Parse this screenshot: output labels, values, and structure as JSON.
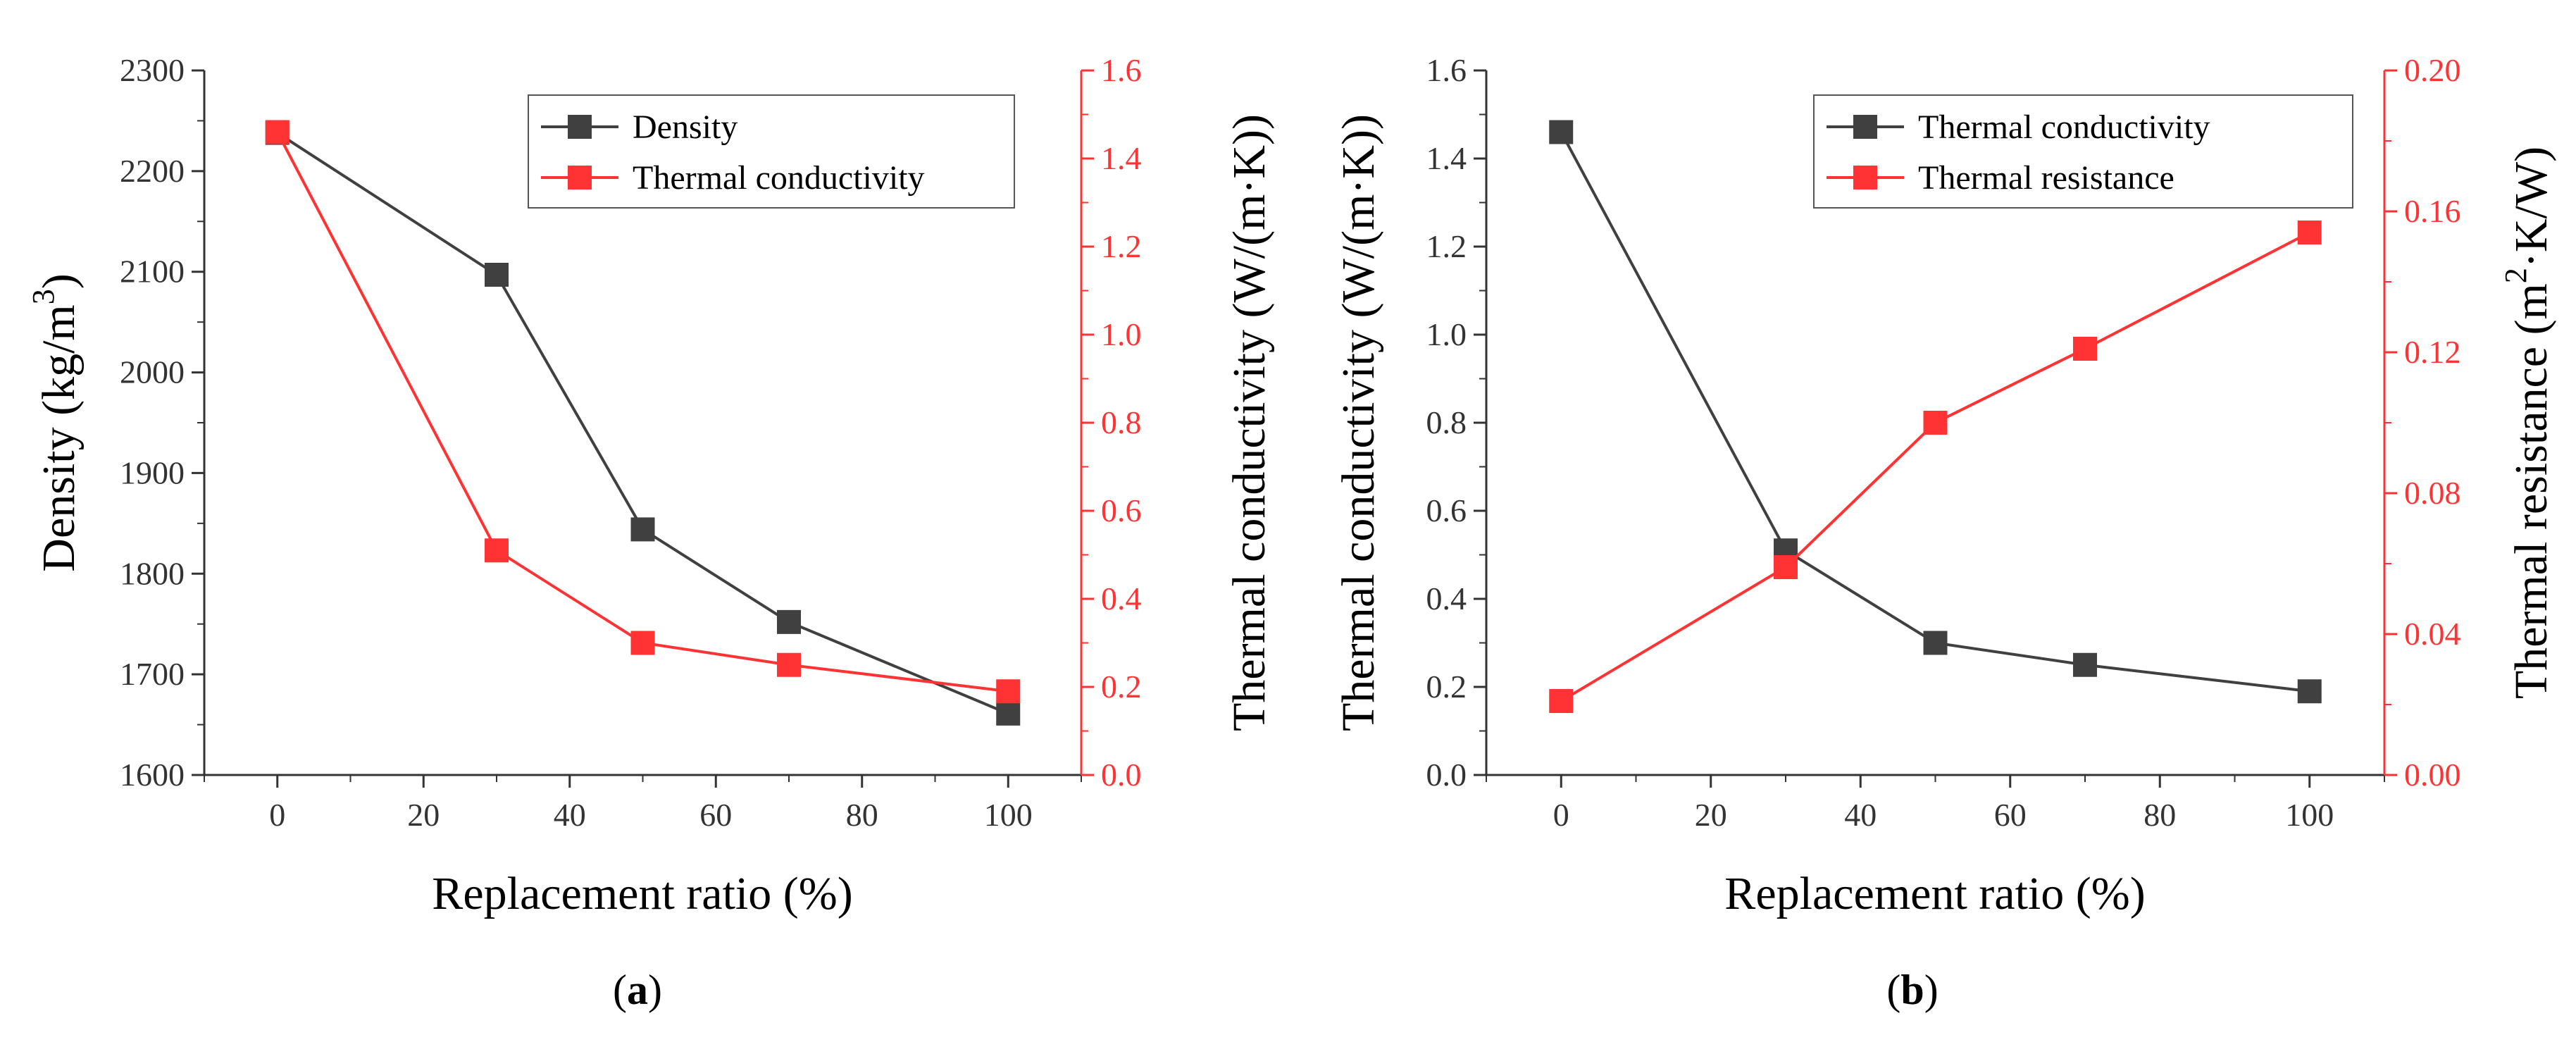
{
  "colors": {
    "left_series": "#404040",
    "right_series": "#ff3333",
    "axis": "#333333",
    "text": "#333333",
    "right_text": "#ff3333"
  },
  "chart_data": [
    {
      "id": "a",
      "type": "line",
      "caption": "(a)",
      "x": [
        0,
        30,
        50,
        70,
        100
      ],
      "xlim": [
        -10,
        110
      ],
      "xticks": [
        0,
        20,
        40,
        60,
        80,
        100
      ],
      "xticks_labels": [
        "0",
        "20",
        "40",
        "60",
        "80",
        "100"
      ],
      "xlabel": "Replacement ratio (%)",
      "ylabel_left": {
        "main": "Density (kg/m",
        "sup": "3",
        "end": ")"
      },
      "ylim_left": [
        1600,
        2300
      ],
      "yticks_left": [
        1600,
        1700,
        1800,
        1900,
        2000,
        2100,
        2200,
        2300
      ],
      "yticks_left_labels": [
        "1600",
        "1700",
        "1800",
        "1900",
        "2000",
        "2100",
        "2200",
        "2300"
      ],
      "ylabel_right": {
        "main": "Thermal conductivity (W/(m·K))",
        "sup": "",
        "end": ""
      },
      "ylim_right": [
        0,
        1.6
      ],
      "yticks_right": [
        0,
        0.2,
        0.4,
        0.6,
        0.8,
        1.0,
        1.2,
        1.4,
        1.6
      ],
      "yticks_right_labels": [
        "0.0",
        "0.2",
        "0.4",
        "0.6",
        "0.8",
        "1.0",
        "1.2",
        "1.4",
        "1.6"
      ],
      "series": [
        {
          "name": "Density",
          "axis": "left",
          "values": [
            2238,
            2097,
            1844,
            1752,
            1661
          ]
        },
        {
          "name": "Thermal conductivity",
          "axis": "right",
          "values": [
            1.46,
            0.51,
            0.3,
            0.25,
            0.19
          ]
        }
      ],
      "legend_position": "top-right"
    },
    {
      "id": "b",
      "type": "line",
      "caption": "(b)",
      "x": [
        0,
        30,
        50,
        70,
        100
      ],
      "xlim": [
        -10,
        110
      ],
      "xticks": [
        0,
        20,
        40,
        60,
        80,
        100
      ],
      "xticks_labels": [
        "0",
        "20",
        "40",
        "60",
        "80",
        "100"
      ],
      "xlabel": "Replacement ratio (%)",
      "ylabel_left": {
        "main": "Thermal conductivity (W/(m·K))",
        "sup": "",
        "end": ""
      },
      "ylim_left": [
        0,
        1.6
      ],
      "yticks_left": [
        0,
        0.2,
        0.4,
        0.6,
        0.8,
        1.0,
        1.2,
        1.4,
        1.6
      ],
      "yticks_left_labels": [
        "0.0",
        "0.2",
        "0.4",
        "0.6",
        "0.8",
        "1.0",
        "1.2",
        "1.4",
        "1.6"
      ],
      "ylabel_right": {
        "main": "Thermal resistance (m",
        "sup": "2",
        "end": "·K/W)"
      },
      "ylim_right": [
        0,
        0.2
      ],
      "yticks_right": [
        0,
        0.04,
        0.08,
        0.12,
        0.16,
        0.2
      ],
      "yticks_right_labels": [
        "0.00",
        "0.04",
        "0.08",
        "0.12",
        "0.16",
        "0.20"
      ],
      "series": [
        {
          "name": "Thermal conductivity",
          "axis": "left",
          "values": [
            1.46,
            0.51,
            0.3,
            0.25,
            0.19
          ]
        },
        {
          "name": "Thermal resistance",
          "axis": "right",
          "values": [
            0.021,
            0.059,
            0.1,
            0.121,
            0.154
          ]
        }
      ],
      "legend_position": "top-right"
    }
  ]
}
